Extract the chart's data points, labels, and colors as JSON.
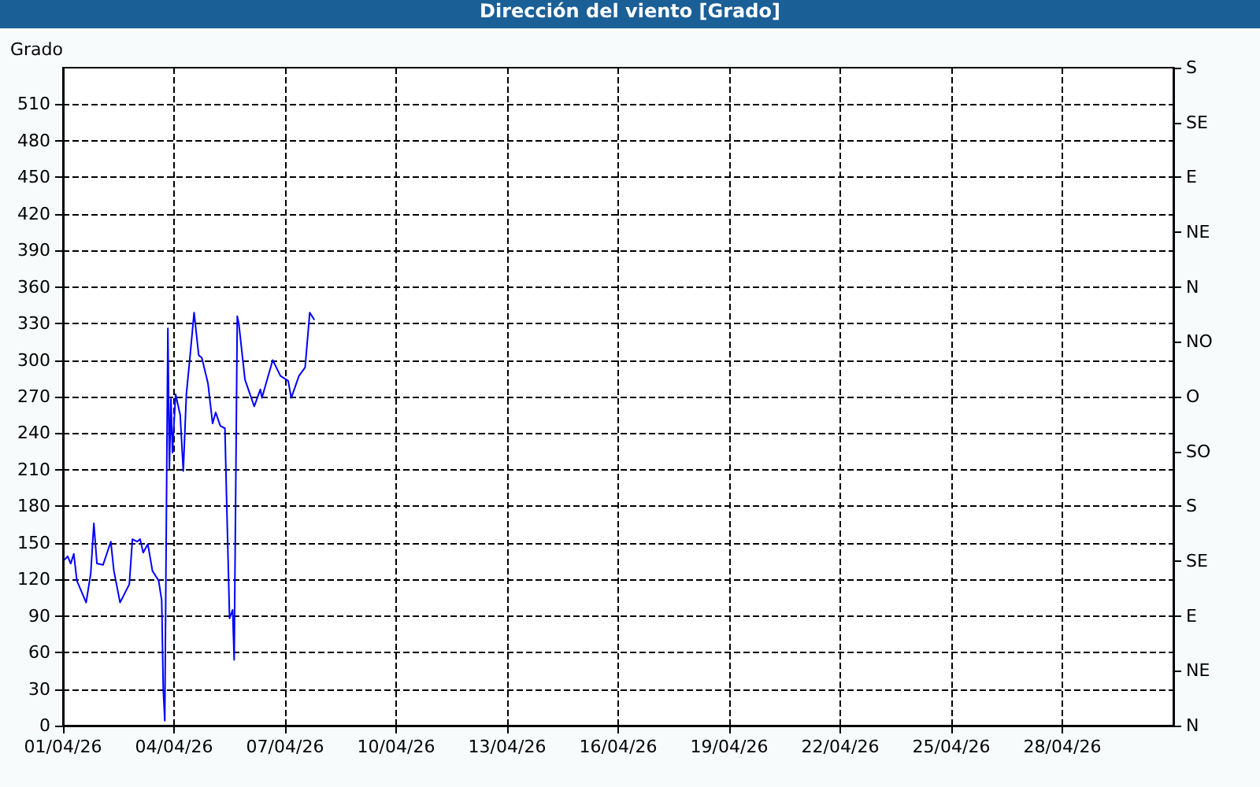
{
  "chart_data": {
    "type": "line",
    "title": "Dirección del viento [Grado]",
    "ylabel": "Grado",
    "x": [
      "--04-01T01:00",
      "--04-01T03:00",
      "--04-01T05:00",
      "--04-01T07:00",
      "--04-01T09:00",
      "--04-01T15:00",
      "--04-01T18:00",
      "--04-01T20:00",
      "--04-01T22:00",
      "--04-02T02:00",
      "--04-02T07:00",
      "--04-02T09:00",
      "--04-02T13:00",
      "--04-02T19:00",
      "--04-02T21:00",
      "--04-03T00:00",
      "--04-03T02:00",
      "--04-03T04:00",
      "--04-03T07:00",
      "--04-03T10:00",
      "--04-03T14:00",
      "--04-03T16:00",
      "--04-03T17:00",
      "--04-03T18:00",
      "--04-03T19:00",
      "--04-03T20:00",
      "--04-03T21:00",
      "--04-03T22:00",
      "--04-03T23:00",
      "--04-04T01:00",
      "--04-04T04:00",
      "--04-04T06:00",
      "--04-04T08:00",
      "--04-04T10:00",
      "--04-04T13:00",
      "--04-04T16:00",
      "--04-04T18:00",
      "--04-04T22:00",
      "--04-05T01:00",
      "--04-05T03:00",
      "--04-05T06:00",
      "--04-05T09:00",
      "--04-05T10:00",
      "--04-05T12:00",
      "--04-05T14:00",
      "--04-05T15:00",
      "--04-05T16:00",
      "--04-05T17:00",
      "--04-05T18:00",
      "--04-05T22:00",
      "--04-06T04:00",
      "--04-06T08:00",
      "--04-06T09:00",
      "--04-06T16:00",
      "--04-06T21:00",
      "--04-07T02:00",
      "--04-07T04:00",
      "--04-07T09:00",
      "--04-07T13:00",
      "--04-07T16:00",
      "--04-07T19:00"
    ],
    "series": [
      {
        "color": "#0000ff",
        "values": [
          136,
          139,
          133,
          141,
          119,
          101,
          125,
          166,
          133,
          132,
          151,
          127,
          101,
          116,
          153,
          151,
          153,
          142,
          149,
          127,
          119,
          103,
          30,
          4,
          166,
          326,
          211,
          268,
          224,
          272,
          255,
          209,
          272,
          298,
          339,
          304,
          302,
          281,
          248,
          257,
          246,
          244,
          190,
          88,
          95,
          54,
          194,
          336,
          330,
          284,
          262,
          276,
          269,
          300,
          287,
          283,
          269,
          287,
          294,
          339,
          333
        ]
      }
    ],
    "xlim": [
      "--04-01",
      "--05-01"
    ],
    "xticks": [
      {
        "value": "--04-01",
        "label": "01/04/26"
      },
      {
        "value": "--04-04",
        "label": "04/04/26"
      },
      {
        "value": "--04-07",
        "label": "07/04/26"
      },
      {
        "value": "--04-10",
        "label": "10/04/26"
      },
      {
        "value": "--04-13",
        "label": "13/04/26"
      },
      {
        "value": "--04-16",
        "label": "16/04/26"
      },
      {
        "value": "--04-19",
        "label": "19/04/26"
      },
      {
        "value": "--04-22",
        "label": "22/04/26"
      },
      {
        "value": "--04-25",
        "label": "25/04/26"
      },
      {
        "value": "--04-28",
        "label": "28/04/26"
      }
    ],
    "ylim": [
      0,
      540
    ],
    "yticks": [
      0,
      30,
      60,
      90,
      120,
      150,
      180,
      210,
      240,
      270,
      300,
      330,
      360,
      390,
      420,
      450,
      480,
      510
    ],
    "y2_categories": [
      "S",
      "SE",
      "E",
      "NE",
      "N",
      "NO",
      "O",
      "SO",
      "S",
      "SE",
      "E",
      "NE",
      "N"
    ],
    "grid": true,
    "marker": "none",
    "line_style": "solid"
  }
}
